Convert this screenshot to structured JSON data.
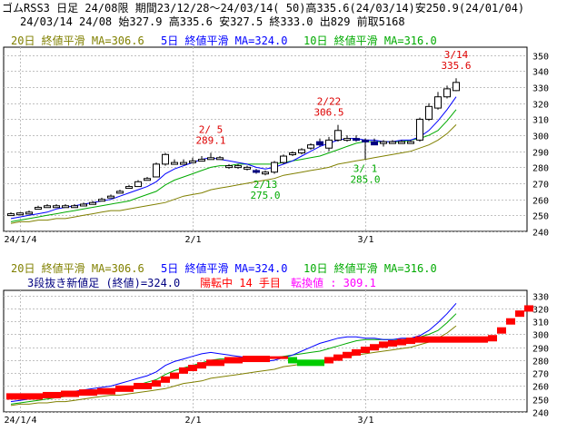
{
  "header": {
    "line1": "ゴムRSS3 日足 24/08限 期間23/12/28～24/03/14( 50)高335.6(24/03/14)安250.9(24/01/04)",
    "line2": "24/03/14 24/08 始327.9 高335.6 安327.5 終333.0 出829 前取5168"
  },
  "colors": {
    "up": "#000000",
    "down": "#000080",
    "ma5": "#0000ff",
    "ma10": "#00aa00",
    "ma20": "#808000",
    "high_label": "#dd0000",
    "low_label": "#00aa00",
    "kagi_up": "#ff0000",
    "kagi_down": "#00cc00",
    "kagi_flat": "#ff0000"
  },
  "top_legend": {
    "ma20": "20日 終値平滑 MA=306.6",
    "ma5": "5日 終値平滑 MA=324.0",
    "ma10": "10日 終値平滑 MA=316.0"
  },
  "bottom_legend": {
    "ma20": "20日 終値平滑 MA=306.6",
    "ma5": "5日 終値平滑 MA=324.0",
    "ma10": "10日 終値平滑 MA=316.0",
    "sanbon": "3段抜き新値足 (終値)=324.0",
    "tenkan": "陽転中 14 手目",
    "tenkan_value": "転換値 : 309.1"
  },
  "chart_data": [
    {
      "type": "candlestick",
      "y_ticks": [
        240,
        250,
        260,
        270,
        280,
        290,
        300,
        310,
        320,
        330,
        340,
        350
      ],
      "ylim": [
        240,
        355
      ],
      "x_tick_labels": [
        "24/1/4",
        "2/1",
        "3/1"
      ],
      "x_tick_index": [
        1,
        20,
        39
      ],
      "annotations": [
        {
          "text": "2/ 5",
          "value": 289.1,
          "index": 22,
          "kind": "high"
        },
        {
          "text": "2/13",
          "value": 275.0,
          "index": 28,
          "kind": "low"
        },
        {
          "text": "2/22",
          "value": 306.5,
          "index": 35,
          "kind": "high"
        },
        {
          "text": "3/ 1",
          "value": 285.0,
          "index": 39,
          "kind": "low"
        },
        {
          "text": "3/14",
          "value": 335.6,
          "index": 49,
          "kind": "high"
        }
      ],
      "candles": [
        {
          "o": 251,
          "h": 252,
          "l": 250.9,
          "c": 251
        },
        {
          "o": 251,
          "h": 252,
          "l": 251,
          "c": 251.5
        },
        {
          "o": 252,
          "h": 253,
          "l": 251,
          "c": 252
        },
        {
          "o": 255,
          "h": 256,
          "l": 254,
          "c": 255
        },
        {
          "o": 256,
          "h": 257,
          "l": 255,
          "c": 256
        },
        {
          "o": 256,
          "h": 257,
          "l": 255,
          "c": 256
        },
        {
          "o": 256,
          "h": 257,
          "l": 255,
          "c": 256
        },
        {
          "o": 256,
          "h": 257,
          "l": 255,
          "c": 256
        },
        {
          "o": 257,
          "h": 258,
          "l": 256,
          "c": 257
        },
        {
          "o": 258,
          "h": 259,
          "l": 257,
          "c": 258
        },
        {
          "o": 260,
          "h": 261,
          "l": 259,
          "c": 260
        },
        {
          "o": 262,
          "h": 263,
          "l": 261,
          "c": 262
        },
        {
          "o": 265,
          "h": 266,
          "l": 264,
          "c": 265
        },
        {
          "o": 268,
          "h": 269,
          "l": 267,
          "c": 268
        },
        {
          "o": 268,
          "h": 272,
          "l": 268,
          "c": 271
        },
        {
          "o": 273,
          "h": 274,
          "l": 272,
          "c": 273
        },
        {
          "o": 274,
          "h": 283,
          "l": 274,
          "c": 282
        },
        {
          "o": 282,
          "h": 289,
          "l": 281,
          "c": 288
        },
        {
          "o": 283,
          "h": 285,
          "l": 282,
          "c": 283
        },
        {
          "o": 283,
          "h": 285,
          "l": 282,
          "c": 283
        },
        {
          "o": 284,
          "h": 286,
          "l": 283,
          "c": 284
        },
        {
          "o": 285,
          "h": 287,
          "l": 284,
          "c": 285
        },
        {
          "o": 286,
          "h": 289.1,
          "l": 285,
          "c": 286
        },
        {
          "o": 286,
          "h": 287,
          "l": 285,
          "c": 286
        },
        {
          "o": 281,
          "h": 282,
          "l": 279,
          "c": 281
        },
        {
          "o": 281,
          "h": 282,
          "l": 279,
          "c": 281
        },
        {
          "o": 280,
          "h": 281,
          "l": 278,
          "c": 280
        },
        {
          "o": 278,
          "h": 279,
          "l": 276,
          "c": 277
        },
        {
          "o": 276,
          "h": 278,
          "l": 275,
          "c": 277
        },
        {
          "o": 277,
          "h": 284,
          "l": 276,
          "c": 283
        },
        {
          "o": 283,
          "h": 288,
          "l": 282,
          "c": 287
        },
        {
          "o": 288,
          "h": 290,
          "l": 287,
          "c": 289
        },
        {
          "o": 289,
          "h": 292,
          "l": 288,
          "c": 291
        },
        {
          "o": 292,
          "h": 295,
          "l": 291,
          "c": 294
        },
        {
          "o": 296,
          "h": 298,
          "l": 293,
          "c": 294
        },
        {
          "o": 292,
          "h": 299,
          "l": 290,
          "c": 297
        },
        {
          "o": 297,
          "h": 306.5,
          "l": 296,
          "c": 303
        },
        {
          "o": 298,
          "h": 300,
          "l": 296,
          "c": 298
        },
        {
          "o": 298,
          "h": 300,
          "l": 296,
          "c": 297
        },
        {
          "o": 297,
          "h": 298,
          "l": 285,
          "c": 296
        },
        {
          "o": 296,
          "h": 298,
          "l": 294,
          "c": 294
        },
        {
          "o": 295,
          "h": 297,
          "l": 293,
          "c": 296
        },
        {
          "o": 296,
          "h": 297,
          "l": 295,
          "c": 296
        },
        {
          "o": 296,
          "h": 297,
          "l": 295,
          "c": 296
        },
        {
          "o": 296,
          "h": 297,
          "l": 295,
          "c": 296
        },
        {
          "o": 297,
          "h": 311,
          "l": 296,
          "c": 310
        },
        {
          "o": 310,
          "h": 320,
          "l": 309,
          "c": 318
        },
        {
          "o": 317,
          "h": 327,
          "l": 316,
          "c": 324
        },
        {
          "o": 324,
          "h": 331,
          "l": 323,
          "c": 329
        },
        {
          "o": 327.9,
          "h": 335.6,
          "l": 327.5,
          "c": 333.0
        }
      ],
      "ma5": [
        248,
        249,
        250,
        251,
        252,
        254,
        255,
        256,
        257,
        258,
        259,
        260,
        262,
        264,
        266,
        268,
        271,
        276,
        279,
        281,
        283,
        285,
        286,
        285,
        284,
        283,
        282,
        280,
        279,
        280,
        282,
        284,
        287,
        290,
        293,
        295,
        297,
        298,
        298,
        297,
        297,
        296,
        296,
        297,
        297,
        299,
        303,
        309,
        316,
        324
      ],
      "ma10": [
        246,
        247,
        248,
        249,
        250,
        251,
        252,
        253,
        254,
        255,
        256,
        257,
        258,
        259,
        261,
        263,
        265,
        269,
        272,
        274,
        276,
        278,
        280,
        281,
        281,
        282,
        282,
        282,
        282,
        282,
        283,
        284,
        285,
        286,
        287,
        289,
        291,
        293,
        295,
        296,
        296,
        296,
        296,
        296,
        297,
        298,
        300,
        303,
        309,
        316
      ],
      "ma20": [
        245,
        246,
        246,
        247,
        247,
        248,
        248,
        249,
        250,
        251,
        252,
        253,
        253,
        254,
        255,
        256,
        257,
        258,
        260,
        262,
        263,
        264,
        266,
        267,
        268,
        269,
        270,
        271,
        272,
        273,
        275,
        276,
        277,
        278,
        279,
        280,
        282,
        283,
        284,
        285,
        286,
        287,
        288,
        289,
        290,
        292,
        294,
        297,
        301,
        306.6
      ]
    },
    {
      "type": "new-price-bar",
      "y_ticks": [
        240,
        250,
        260,
        270,
        280,
        290,
        300,
        310,
        320,
        330
      ],
      "ylim": [
        240,
        334
      ],
      "x_tick_labels": [
        "24/1/4",
        "2/1",
        "3/1"
      ],
      "x_tick_index": [
        1,
        20,
        39
      ],
      "steps": [
        {
          "v": 252,
          "d": "up",
          "w": 4
        },
        {
          "v": 253,
          "d": "up",
          "w": 2
        },
        {
          "v": 254,
          "d": "up",
          "w": 2
        },
        {
          "v": 255,
          "d": "up",
          "w": 2
        },
        {
          "v": 256,
          "d": "up",
          "w": 2
        },
        {
          "v": 258,
          "d": "up",
          "w": 2
        },
        {
          "v": 260,
          "d": "up",
          "w": 2
        },
        {
          "v": 262,
          "d": "up",
          "w": 1
        },
        {
          "v": 265,
          "d": "up",
          "w": 1
        },
        {
          "v": 268,
          "d": "up",
          "w": 1
        },
        {
          "v": 272,
          "d": "up",
          "w": 1
        },
        {
          "v": 274,
          "d": "up",
          "w": 1
        },
        {
          "v": 276,
          "d": "up",
          "w": 1
        },
        {
          "v": 278,
          "d": "up",
          "w": 2
        },
        {
          "v": 280,
          "d": "up",
          "w": 2
        },
        {
          "v": 281,
          "d": "up",
          "w": 3
        },
        {
          "v": 282,
          "d": "flat",
          "w": 2
        },
        {
          "v": 280,
          "d": "down",
          "w": 1
        },
        {
          "v": 278,
          "d": "down",
          "w": 3
        },
        {
          "v": 280,
          "d": "up",
          "w": 1
        },
        {
          "v": 282,
          "d": "up",
          "w": 1
        },
        {
          "v": 284,
          "d": "up",
          "w": 1
        },
        {
          "v": 286,
          "d": "up",
          "w": 1
        },
        {
          "v": 288,
          "d": "up",
          "w": 1
        },
        {
          "v": 290,
          "d": "up",
          "w": 1
        },
        {
          "v": 292,
          "d": "up",
          "w": 1
        },
        {
          "v": 293,
          "d": "up",
          "w": 1
        },
        {
          "v": 294,
          "d": "up",
          "w": 1
        },
        {
          "v": 295,
          "d": "up",
          "w": 1
        },
        {
          "v": 296,
          "d": "up",
          "w": 8
        },
        {
          "v": 297,
          "d": "up",
          "w": 1
        },
        {
          "v": 303,
          "d": "up",
          "w": 1
        },
        {
          "v": 310,
          "d": "up",
          "w": 1
        },
        {
          "v": 316,
          "d": "up",
          "w": 1
        },
        {
          "v": 320,
          "d": "up",
          "w": 1
        }
      ],
      "ma5": [
        248,
        249,
        250,
        251,
        252,
        254,
        255,
        256,
        257,
        258,
        259,
        260,
        262,
        264,
        266,
        268,
        271,
        276,
        279,
        281,
        283,
        285,
        286,
        285,
        284,
        283,
        282,
        280,
        279,
        280,
        282,
        284,
        287,
        290,
        293,
        295,
        297,
        298,
        298,
        297,
        297,
        296,
        296,
        297,
        297,
        299,
        303,
        309,
        316,
        324
      ],
      "ma10": [
        246,
        247,
        248,
        249,
        250,
        251,
        252,
        253,
        254,
        255,
        256,
        257,
        258,
        259,
        261,
        263,
        265,
        269,
        272,
        274,
        276,
        278,
        280,
        281,
        281,
        282,
        282,
        282,
        282,
        282,
        283,
        284,
        285,
        286,
        287,
        289,
        291,
        293,
        295,
        296,
        296,
        296,
        296,
        296,
        297,
        298,
        300,
        303,
        309,
        316
      ],
      "ma20": [
        245,
        246,
        246,
        247,
        247,
        248,
        248,
        249,
        250,
        251,
        252,
        253,
        253,
        254,
        255,
        256,
        257,
        258,
        260,
        262,
        263,
        264,
        266,
        267,
        268,
        269,
        270,
        271,
        272,
        273,
        275,
        276,
        277,
        278,
        279,
        280,
        282,
        283,
        284,
        285,
        286,
        287,
        288,
        289,
        290,
        292,
        294,
        297,
        301,
        306.6
      ]
    }
  ]
}
